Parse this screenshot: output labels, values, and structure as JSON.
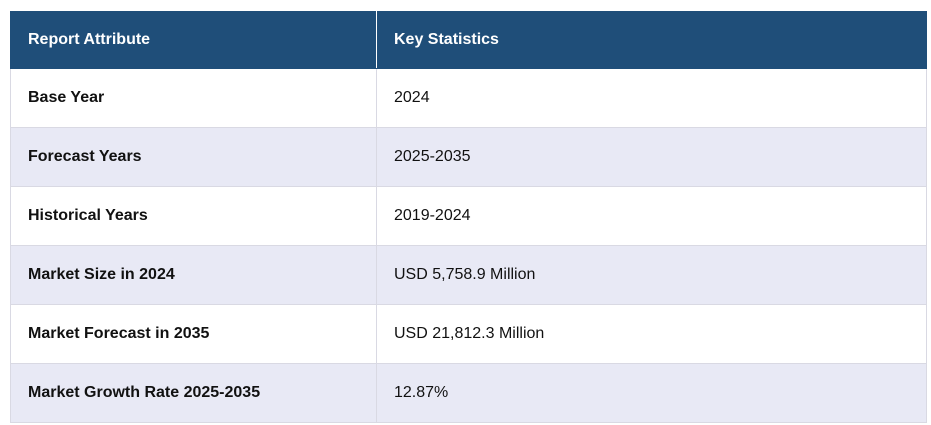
{
  "table": {
    "headers": [
      "Report Attribute",
      "Key Statistics"
    ],
    "rows": [
      {
        "attribute": "Base Year",
        "value": "2024"
      },
      {
        "attribute": "Forecast Years",
        "value": "2025-2035"
      },
      {
        "attribute": "Historical Years",
        "value": "2019-2024"
      },
      {
        "attribute": "Market Size in 2024",
        "value": "USD 5,758.9 Million"
      },
      {
        "attribute": "Market Forecast in 2035",
        "value": "USD 21,812.3 Million"
      },
      {
        "attribute": "Market Growth Rate 2025-2035",
        "value": "12.87%"
      }
    ],
    "colors": {
      "header_bg": "#1f4e79",
      "header_text": "#ffffff",
      "row_alt_bg": "#e8e9f5",
      "row_bg": "#ffffff"
    }
  }
}
